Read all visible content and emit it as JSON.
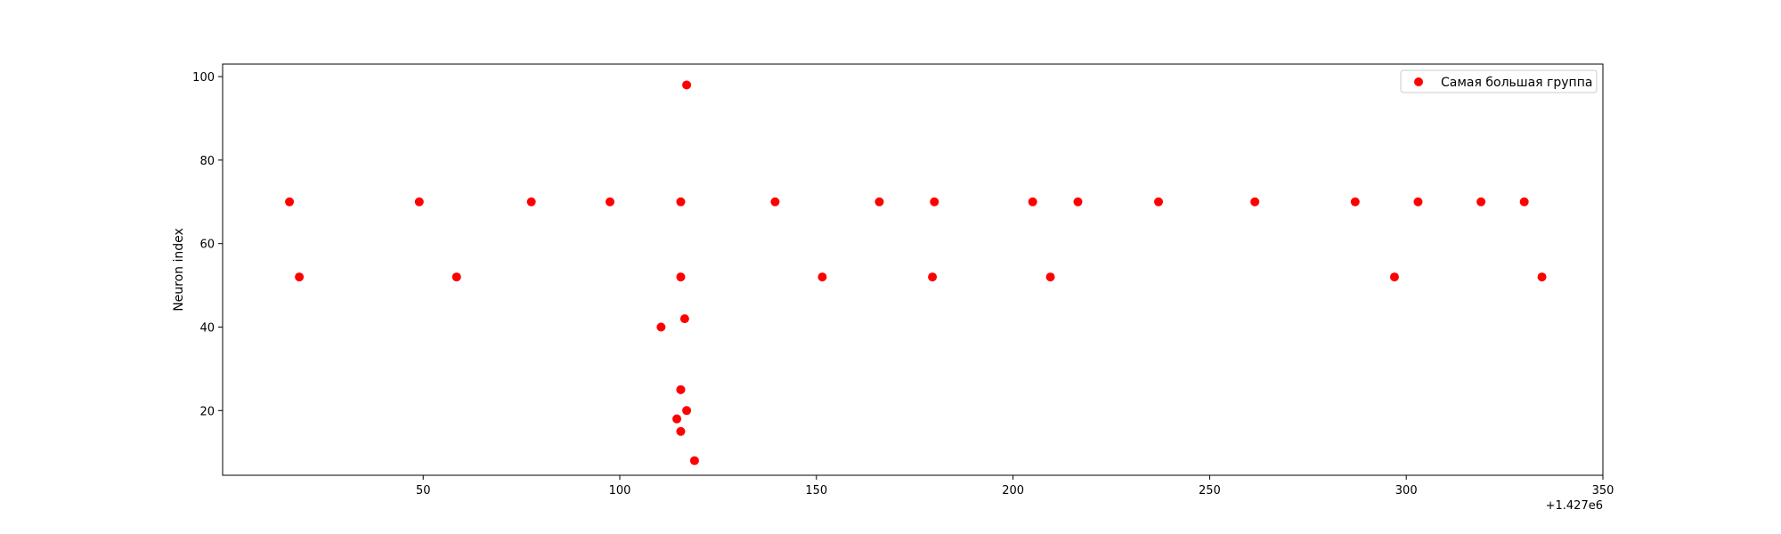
{
  "chart_data": {
    "type": "scatter",
    "title": "",
    "xlabel": "",
    "ylabel": "Neuron index",
    "x_offset_label": "+1.427e6",
    "xlim": [
      -1,
      350
    ],
    "ylim": [
      4.5,
      103
    ],
    "xticks": [
      50,
      100,
      150,
      200,
      250,
      300,
      350
    ],
    "yticks": [
      20,
      40,
      60,
      80,
      100
    ],
    "grid": false,
    "legend_position": "upper-right",
    "series": [
      {
        "name": "Самая большая группа",
        "color": "#ff0000",
        "points": [
          {
            "x": 16,
            "y": 70
          },
          {
            "x": 49,
            "y": 70
          },
          {
            "x": 77.5,
            "y": 70
          },
          {
            "x": 97.5,
            "y": 70
          },
          {
            "x": 115.5,
            "y": 70
          },
          {
            "x": 139.5,
            "y": 70
          },
          {
            "x": 166,
            "y": 70
          },
          {
            "x": 180,
            "y": 70
          },
          {
            "x": 205,
            "y": 70
          },
          {
            "x": 216.5,
            "y": 70
          },
          {
            "x": 237,
            "y": 70
          },
          {
            "x": 261.5,
            "y": 70
          },
          {
            "x": 287,
            "y": 70
          },
          {
            "x": 303,
            "y": 70
          },
          {
            "x": 319,
            "y": 70
          },
          {
            "x": 330,
            "y": 70
          },
          {
            "x": 18.5,
            "y": 52
          },
          {
            "x": 58.5,
            "y": 52
          },
          {
            "x": 115.5,
            "y": 52
          },
          {
            "x": 151.5,
            "y": 52
          },
          {
            "x": 179.5,
            "y": 52
          },
          {
            "x": 209.5,
            "y": 52
          },
          {
            "x": 297,
            "y": 52
          },
          {
            "x": 334.5,
            "y": 52
          },
          {
            "x": 117,
            "y": 98
          },
          {
            "x": 116.5,
            "y": 42
          },
          {
            "x": 110.5,
            "y": 40
          },
          {
            "x": 115.5,
            "y": 25
          },
          {
            "x": 117,
            "y": 20
          },
          {
            "x": 114.5,
            "y": 18
          },
          {
            "x": 115.5,
            "y": 15
          },
          {
            "x": 119,
            "y": 8
          }
        ]
      }
    ]
  }
}
